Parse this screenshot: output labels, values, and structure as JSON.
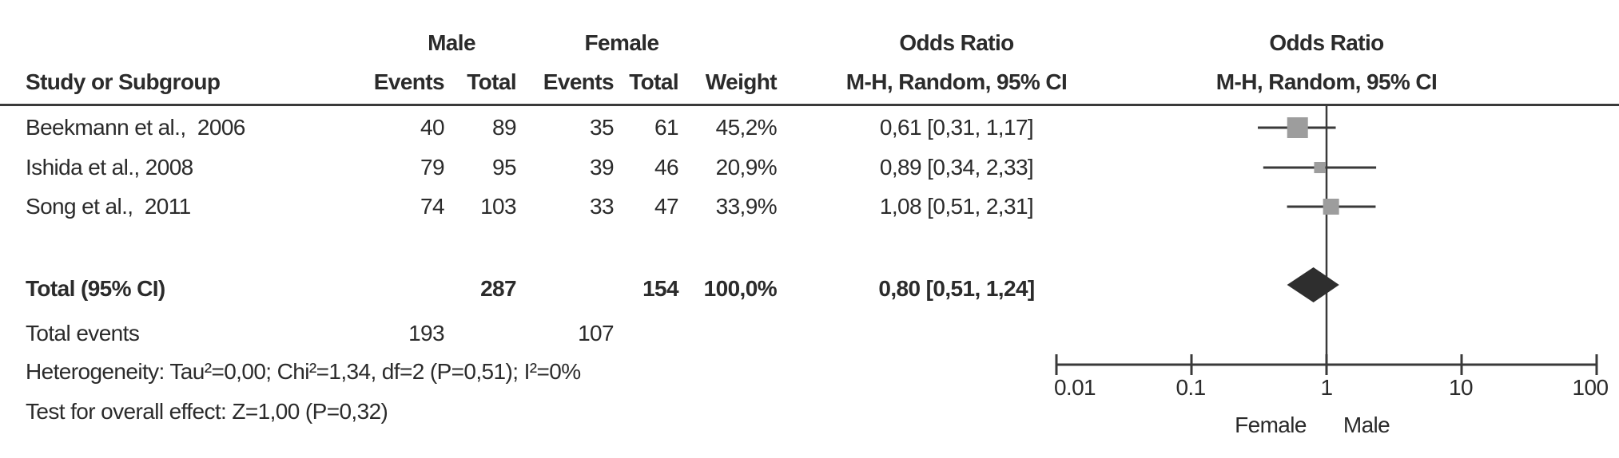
{
  "table": {
    "headers": {
      "male_group": "Male",
      "female_group": "Female",
      "or_text_col": "Odds Ratio",
      "or_plot_col": "Odds Ratio",
      "study": "Study or Subgroup",
      "male_events": "Events",
      "male_total": "Total",
      "female_events": "Events",
      "female_total": "Total",
      "weight": "Weight",
      "mh_text_col": "M-H, Random, 95% CI",
      "mh_plot_col": "M-H, Random, 95% CI"
    },
    "rows": [
      {
        "study": "Beekmann et al.,  2006",
        "male_events": "40",
        "male_total": "89",
        "female_events": "35",
        "female_total": "61",
        "weight": "45,2%",
        "or_ci": "0,61 [0,31, 1,17]",
        "or": 0.61,
        "ci_low": 0.31,
        "ci_high": 1.17,
        "marker_size": 26
      },
      {
        "study": "Ishida et al., 2008",
        "male_events": "79",
        "male_total": "95",
        "female_events": "39",
        "female_total": "46",
        "weight": "20,9%",
        "or_ci": "0,89 [0,34, 2,33]",
        "or": 0.89,
        "ci_low": 0.34,
        "ci_high": 2.33,
        "marker_size": 14
      },
      {
        "study": "Song et al.,  2011",
        "male_events": "74",
        "male_total": "103",
        "female_events": "33",
        "female_total": "47",
        "weight": "33,9%",
        "or_ci": "1,08 [0,51, 2,31]",
        "or": 1.08,
        "ci_low": 0.51,
        "ci_high": 2.31,
        "marker_size": 20
      }
    ],
    "total_row": {
      "label": "Total (95% CI)",
      "male_total": "287",
      "female_total": "154",
      "weight": "100,0%",
      "or_ci": "0,80 [0,51, 1,24]",
      "or": 0.8,
      "ci_low": 0.51,
      "ci_high": 1.24
    },
    "total_events_row": {
      "label": "Total events",
      "male_events": "193",
      "female_events": "107"
    },
    "heterogeneity": "Heterogeneity: Tau²=0,00; Chi²=1,34, df=2 (P=0,51); I²=0%",
    "overall_effect": "Test for overall effect: Z=1,00 (P=0,32)"
  },
  "plot": {
    "axis_ticks": [
      "0.01",
      "0.1",
      "1",
      "10",
      "100"
    ],
    "axis_values": [
      0.01,
      0.1,
      1,
      10,
      100
    ],
    "left_direction_label": "Female",
    "right_direction_label": "Male",
    "colors": {
      "square": "#9d9d9d",
      "diamond": "#2e2e2e",
      "line": "#3a3a3a",
      "text": "#2b2b2b"
    }
  },
  "chart_data": {
    "type": "scatter",
    "subtype": "forest_plot_meta_analysis",
    "effect_measure": "Odds Ratio, M-H, Random, 95% CI",
    "x_scale": "log",
    "x_ticks": [
      0.01,
      0.1,
      1,
      10,
      100
    ],
    "x_range": [
      0.01,
      100
    ],
    "favours_labels": {
      "left_of_1": "Female",
      "right_of_1": "Male"
    },
    "studies": [
      {
        "name": "Beekmann et al., 2006",
        "male_events": 40,
        "male_total": 89,
        "female_events": 35,
        "female_total": 61,
        "weight_pct": 45.2,
        "or": 0.61,
        "ci95": [
          0.31,
          1.17
        ]
      },
      {
        "name": "Ishida et al., 2008",
        "male_events": 79,
        "male_total": 95,
        "female_events": 39,
        "female_total": 46,
        "weight_pct": 20.9,
        "or": 0.89,
        "ci95": [
          0.34,
          2.33
        ]
      },
      {
        "name": "Song et al., 2011",
        "male_events": 74,
        "male_total": 103,
        "female_events": 33,
        "female_total": 47,
        "weight_pct": 33.9,
        "or": 1.08,
        "ci95": [
          0.51,
          2.31
        ]
      }
    ],
    "total": {
      "male_events": 193,
      "male_total": 287,
      "female_events": 107,
      "female_total": 154,
      "weight_pct": 100.0,
      "or": 0.8,
      "ci95": [
        0.51,
        1.24
      ]
    },
    "heterogeneity": {
      "tau2": 0.0,
      "chi2": 1.34,
      "df": 2,
      "p": 0.51,
      "i2_pct": 0
    },
    "overall_effect_test": {
      "z": 1.0,
      "p": 0.32
    }
  }
}
